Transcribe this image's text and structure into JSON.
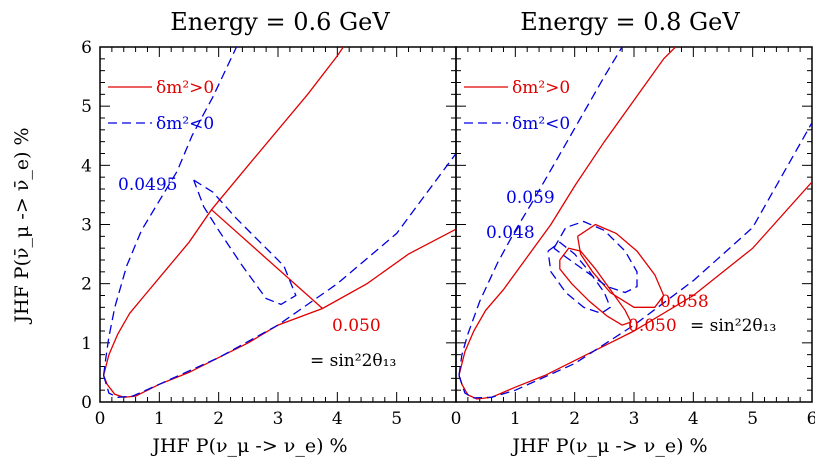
{
  "chart_data": [
    {
      "type": "line",
      "title": "Energy = 0.6 GeV",
      "xlabel": "JHF P(ν_μ -> ν_e) %",
      "ylabel": "JHF P(ν̄_μ -> ν̄_e) %",
      "xlim": [
        0,
        6
      ],
      "ylim": [
        0,
        6
      ],
      "xticks": [
        "0",
        "1",
        "2",
        "3",
        "4",
        "5"
      ],
      "yticks": [
        "0",
        "1",
        "2",
        "3",
        "4",
        "5",
        "6"
      ],
      "legend": [
        {
          "label": "δm²>0",
          "color": "#e00000",
          "style": "solid"
        },
        {
          "label": "δm²<0",
          "color": "#0000e0",
          "style": "dashed"
        }
      ],
      "series": [
        {
          "name": "δm²>0",
          "color": "#e00000",
          "style": "solid",
          "points": [
            [
              0.06,
              0.45
            ],
            [
              0.12,
              0.3
            ],
            [
              0.25,
              0.13
            ],
            [
              0.4,
              0.08
            ],
            [
              0.6,
              0.1
            ],
            [
              1.0,
              0.3
            ],
            [
              1.5,
              0.5
            ],
            [
              2.0,
              0.75
            ],
            [
              2.5,
              1.0
            ],
            [
              3.0,
              1.3
            ],
            [
              3.75,
              1.58
            ],
            [
              4.5,
              2.0
            ],
            [
              5.2,
              2.5
            ],
            [
              6.0,
              2.92
            ]
          ]
        },
        {
          "name": "δm²>0",
          "color": "#e00000",
          "style": "solid",
          "points": [
            [
              0.06,
              0.45
            ],
            [
              0.15,
              0.8
            ],
            [
              0.3,
              1.15
            ],
            [
              0.5,
              1.5
            ],
            [
              0.75,
              1.8
            ],
            [
              1.0,
              2.1
            ],
            [
              1.5,
              2.7
            ],
            [
              1.88,
              3.25
            ],
            [
              2.5,
              4.0
            ],
            [
              3.0,
              4.6
            ],
            [
              3.5,
              5.2
            ],
            [
              4.0,
              5.85
            ],
            [
              4.1,
              6.0
            ]
          ]
        },
        {
          "name": "δm²>0",
          "color": "#e00000",
          "style": "solid",
          "points": [
            [
              1.88,
              3.25
            ],
            [
              3.75,
              1.58
            ]
          ]
        },
        {
          "name": "δm²<0",
          "color": "#0000e0",
          "style": "dashed",
          "points": [
            [
              0.06,
              0.45
            ],
            [
              0.1,
              0.75
            ],
            [
              0.15,
              1.1
            ],
            [
              0.25,
              1.6
            ],
            [
              0.45,
              2.3
            ],
            [
              0.7,
              2.9
            ],
            [
              1.0,
              3.4
            ],
            [
              1.3,
              3.9
            ],
            [
              1.55,
              4.5
            ],
            [
              1.9,
              5.15
            ],
            [
              2.3,
              6.0
            ]
          ]
        },
        {
          "name": "δm²<0",
          "color": "#0000e0",
          "style": "dashed",
          "points": [
            [
              0.06,
              0.45
            ],
            [
              0.15,
              0.15
            ],
            [
              0.3,
              0.08
            ],
            [
              0.55,
              0.1
            ],
            [
              1.0,
              0.3
            ],
            [
              2.0,
              0.75
            ],
            [
              3.0,
              1.3
            ],
            [
              4.0,
              2.0
            ],
            [
              5.0,
              2.85
            ],
            [
              6.0,
              4.2
            ]
          ]
        },
        {
          "name": "δm²<0",
          "color": "#0000e0",
          "style": "dashed",
          "points": [
            [
              1.58,
              3.75
            ],
            [
              1.9,
              3.55
            ],
            [
              2.3,
              3.1
            ],
            [
              2.7,
              2.7
            ],
            [
              3.1,
              2.3
            ],
            [
              3.3,
              1.8
            ],
            [
              3.05,
              1.65
            ],
            [
              2.8,
              1.75
            ],
            [
              2.4,
              2.3
            ],
            [
              2.0,
              2.9
            ],
            [
              1.75,
              3.3
            ],
            [
              1.58,
              3.75
            ]
          ]
        }
      ],
      "annotations": [
        {
          "text": "0.0495",
          "color": "#0000e0"
        },
        {
          "text": "0.050",
          "color": "#e00000"
        },
        {
          "text": "= sin²2θ₁₃",
          "color": "#000000"
        }
      ]
    },
    {
      "type": "line",
      "title": "Energy = 0.8 GeV",
      "xlabel": "JHF P(ν_μ -> ν_e) %",
      "xlim": [
        0,
        6
      ],
      "ylim": [
        0,
        6
      ],
      "xticks": [
        "0",
        "1",
        "2",
        "3",
        "4",
        "5",
        "6"
      ],
      "legend": [
        {
          "label": "δm²>0",
          "color": "#e00000",
          "style": "solid"
        },
        {
          "label": "δm²<0",
          "color": "#0000e0",
          "style": "dashed"
        }
      ],
      "series": [
        {
          "name": "δm²>0",
          "color": "#e00000",
          "style": "solid",
          "points": [
            [
              0.05,
              0.45
            ],
            [
              0.1,
              0.3
            ],
            [
              0.2,
              0.12
            ],
            [
              0.35,
              0.05
            ],
            [
              0.6,
              0.08
            ],
            [
              1.0,
              0.25
            ],
            [
              1.5,
              0.45
            ],
            [
              2.0,
              0.7
            ],
            [
              2.5,
              0.95
            ],
            [
              3.0,
              1.2
            ],
            [
              4.0,
              1.8
            ],
            [
              5.0,
              2.6
            ],
            [
              6.0,
              3.72
            ]
          ]
        },
        {
          "name": "δm²>0",
          "color": "#e00000",
          "style": "solid",
          "points": [
            [
              0.05,
              0.45
            ],
            [
              0.15,
              0.85
            ],
            [
              0.3,
              1.2
            ],
            [
              0.5,
              1.55
            ],
            [
              0.8,
              1.9
            ],
            [
              1.2,
              2.45
            ],
            [
              1.6,
              3.0
            ],
            [
              2.0,
              3.65
            ],
            [
              2.5,
              4.4
            ],
            [
              3.0,
              5.1
            ],
            [
              3.5,
              5.8
            ],
            [
              3.7,
              6.0
            ]
          ]
        },
        {
          "name": "δm²>0",
          "color": "#e00000",
          "style": "solid",
          "points": [
            [
              1.75,
              2.4
            ],
            [
              1.9,
              2.6
            ],
            [
              2.1,
              2.55
            ],
            [
              2.35,
              2.25
            ],
            [
              2.6,
              1.9
            ],
            [
              2.85,
              1.55
            ],
            [
              2.95,
              1.35
            ],
            [
              2.8,
              1.3
            ],
            [
              2.55,
              1.45
            ],
            [
              2.25,
              1.7
            ],
            [
              1.95,
              2.0
            ],
            [
              1.75,
              2.25
            ],
            [
              1.75,
              2.4
            ]
          ]
        },
        {
          "name": "δm²>0",
          "color": "#e00000",
          "style": "solid",
          "points": [
            [
              2.05,
              2.8
            ],
            [
              2.35,
              3.0
            ],
            [
              2.7,
              2.85
            ],
            [
              3.05,
              2.55
            ],
            [
              3.35,
              2.15
            ],
            [
              3.5,
              1.8
            ],
            [
              3.35,
              1.6
            ],
            [
              3.0,
              1.6
            ],
            [
              2.6,
              1.85
            ],
            [
              2.3,
              2.2
            ],
            [
              2.1,
              2.5
            ],
            [
              2.05,
              2.8
            ]
          ]
        },
        {
          "name": "δm²<0",
          "color": "#0000e0",
          "style": "dashed",
          "points": [
            [
              0.05,
              0.45
            ],
            [
              0.1,
              0.8
            ],
            [
              0.2,
              1.15
            ],
            [
              0.4,
              1.7
            ],
            [
              0.7,
              2.35
            ],
            [
              1.0,
              2.9
            ],
            [
              1.3,
              3.4
            ],
            [
              1.7,
              4.1
            ],
            [
              2.1,
              4.8
            ],
            [
              2.5,
              5.5
            ],
            [
              2.8,
              6.0
            ]
          ]
        },
        {
          "name": "δm²<0",
          "color": "#0000e0",
          "style": "dashed",
          "points": [
            [
              0.05,
              0.45
            ],
            [
              0.15,
              0.15
            ],
            [
              0.3,
              0.07
            ],
            [
              0.6,
              0.08
            ],
            [
              1.0,
              0.2
            ],
            [
              2.0,
              0.65
            ],
            [
              3.0,
              1.3
            ],
            [
              4.0,
              2.05
            ],
            [
              5.0,
              2.95
            ],
            [
              6.0,
              4.72
            ]
          ]
        },
        {
          "name": "δm²<0",
          "color": "#0000e0",
          "style": "dashed",
          "points": [
            [
              1.55,
              2.55
            ],
            [
              1.75,
              2.7
            ],
            [
              2.0,
              2.5
            ],
            [
              2.25,
              2.2
            ],
            [
              2.5,
              1.85
            ],
            [
              2.6,
              1.6
            ],
            [
              2.45,
              1.5
            ],
            [
              2.15,
              1.6
            ],
            [
              1.85,
              1.85
            ],
            [
              1.6,
              2.2
            ],
            [
              1.55,
              2.55
            ]
          ]
        },
        {
          "name": "δm²<0",
          "color": "#0000e0",
          "style": "dashed",
          "points": [
            [
              1.65,
              2.6
            ],
            [
              1.85,
              2.95
            ],
            [
              2.15,
              3.05
            ],
            [
              2.5,
              2.9
            ],
            [
              2.85,
              2.55
            ],
            [
              3.05,
              2.2
            ],
            [
              3.05,
              1.95
            ],
            [
              2.85,
              1.85
            ],
            [
              2.55,
              1.95
            ],
            [
              2.2,
              2.2
            ],
            [
              1.85,
              2.45
            ],
            [
              1.65,
              2.6
            ]
          ]
        }
      ],
      "annotations": [
        {
          "text": "0.059",
          "color": "#0000e0"
        },
        {
          "text": "0.048",
          "color": "#0000e0"
        },
        {
          "text": "0.058",
          "color": "#e00000"
        },
        {
          "text": "0.050",
          "color": "#e00000"
        },
        {
          "text": "= sin²2θ₁₃",
          "color": "#000000"
        }
      ]
    }
  ]
}
